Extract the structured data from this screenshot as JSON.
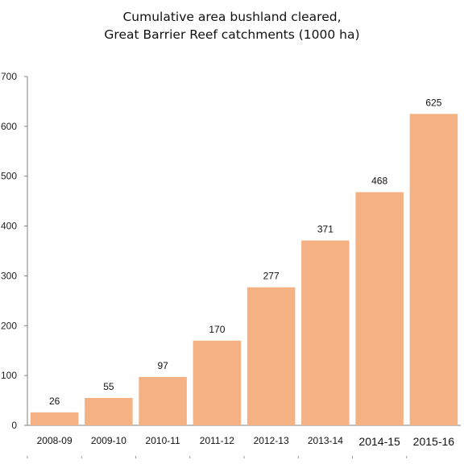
{
  "chart_data": {
    "type": "bar",
    "title": "Cumulative area bushland cleared,",
    "subtitle": "Great Barrier Reef catchments (1000 ha)",
    "categories": [
      "2008-09",
      "2009-10",
      "2010-11",
      "2011-12",
      "2012-13",
      "2013-14",
      "2014-15",
      "2015-16"
    ],
    "values": [
      26,
      55,
      97,
      170,
      277,
      371,
      468,
      625
    ],
    "data_labels": [
      "26",
      "55",
      "97",
      "170",
      "277",
      "371",
      "468",
      "625"
    ],
    "y_ticks": [
      "0",
      "100",
      "200",
      "300",
      "400",
      "500",
      "600",
      "700"
    ],
    "ylim": [
      0,
      700
    ],
    "xlabel": "",
    "ylabel": "",
    "grid": false,
    "legend": "none",
    "bar_color": "#F4B183"
  }
}
